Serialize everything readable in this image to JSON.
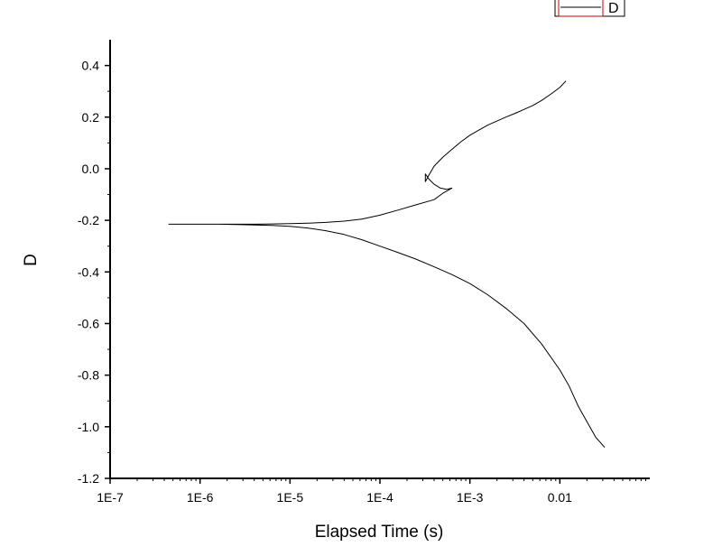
{
  "chart_data": {
    "type": "line",
    "title": "",
    "xlabel": "Elapsed Time (s)",
    "ylabel": "D",
    "x_scale": "log",
    "xlim": [
      1e-07,
      0.1
    ],
    "ylim": [
      -1.2,
      0.5
    ],
    "x_ticks": [
      {
        "value": 1e-07,
        "label": "1E-7"
      },
      {
        "value": 1e-06,
        "label": "1E-6"
      },
      {
        "value": 1e-05,
        "label": "1E-5"
      },
      {
        "value": 0.0001,
        "label": "1E-4"
      },
      {
        "value": 0.001,
        "label": "1E-3"
      },
      {
        "value": 0.01,
        "label": "0.01"
      }
    ],
    "y_ticks": [
      {
        "value": 0.4,
        "label": "0.4"
      },
      {
        "value": 0.2,
        "label": "0.2"
      },
      {
        "value": 0.0,
        "label": "0.0"
      },
      {
        "value": -0.2,
        "label": "-0.2"
      },
      {
        "value": -0.4,
        "label": "-0.4"
      },
      {
        "value": -0.6,
        "label": "-0.6"
      },
      {
        "value": -0.8,
        "label": "-0.8"
      },
      {
        "value": -1.0,
        "label": "-1.0"
      },
      {
        "value": -1.2,
        "label": "-1.2"
      }
    ],
    "grid": false,
    "legend_position": "top-right",
    "series": [
      {
        "name": "D",
        "color": "#000000",
        "x": [
          0.0117,
          0.01,
          0.008,
          0.0063,
          0.005,
          0.004,
          0.0032,
          0.0025,
          0.002,
          0.0016,
          0.00126,
          0.001,
          0.0008,
          0.00063,
          0.0005,
          0.0004,
          0.00035,
          0.00032,
          0.00032,
          0.00035,
          0.0004,
          0.00047,
          0.00055,
          0.00063,
          0.0005,
          0.0004,
          0.00025,
          0.00016,
          0.0001,
          6.3e-05,
          4e-05,
          2.5e-05,
          1.6e-05,
          1e-05,
          6.3e-06,
          4e-06,
          2.5e-06,
          1.6e-06,
          1e-06,
          6.3e-07,
          4.5e-07,
          6.3e-07,
          1e-06,
          1.6e-06,
          2.5e-06,
          4e-06,
          6.3e-06,
          1e-05,
          1.6e-05,
          2.5e-05,
          4e-05,
          6.3e-05,
          0.0001,
          0.00016,
          0.00025,
          0.0004,
          0.00063,
          0.001,
          0.0016,
          0.0025,
          0.004,
          0.0063,
          0.01,
          0.0126,
          0.016,
          0.02,
          0.025,
          0.0315
        ],
        "y": [
          0.34,
          0.315,
          0.29,
          0.265,
          0.245,
          0.23,
          0.215,
          0.2,
          0.185,
          0.17,
          0.15,
          0.13,
          0.105,
          0.075,
          0.045,
          0.01,
          -0.025,
          -0.05,
          -0.02,
          -0.04,
          -0.06,
          -0.075,
          -0.08,
          -0.075,
          -0.095,
          -0.12,
          -0.14,
          -0.16,
          -0.18,
          -0.195,
          -0.203,
          -0.208,
          -0.211,
          -0.213,
          -0.214,
          -0.215,
          -0.215,
          -0.215,
          -0.215,
          -0.215,
          -0.215,
          -0.215,
          -0.215,
          -0.215,
          -0.216,
          -0.218,
          -0.22,
          -0.223,
          -0.23,
          -0.24,
          -0.255,
          -0.275,
          -0.3,
          -0.325,
          -0.35,
          -0.38,
          -0.41,
          -0.445,
          -0.49,
          -0.54,
          -0.6,
          -0.68,
          -0.78,
          -0.84,
          -0.92,
          -0.98,
          -1.04,
          -1.08
        ]
      }
    ]
  }
}
